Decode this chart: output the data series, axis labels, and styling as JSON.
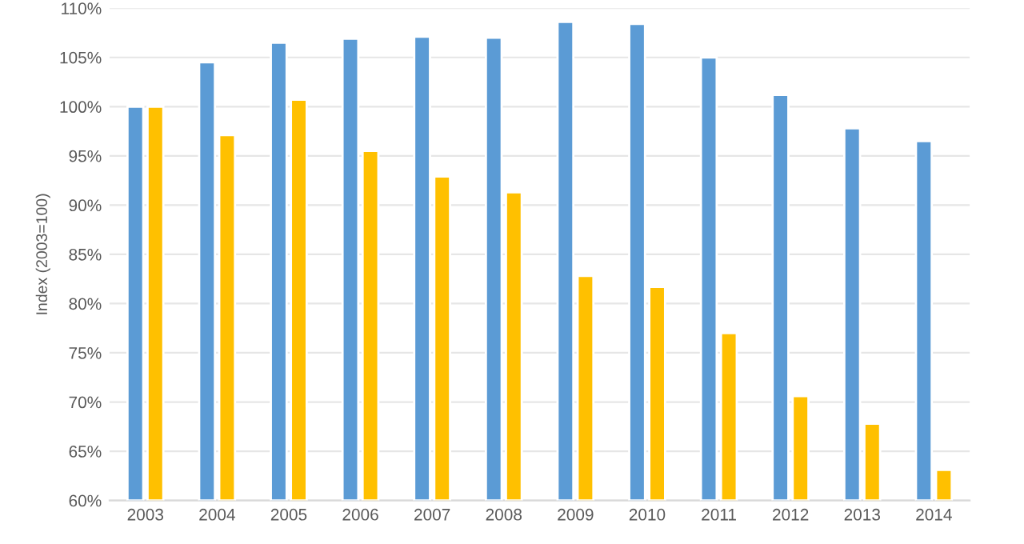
{
  "chart_data": {
    "type": "bar",
    "ylabel": "Index (2003=100)",
    "categories": [
      "2003",
      "2004",
      "2005",
      "2006",
      "2007",
      "2008",
      "2009",
      "2010",
      "2011",
      "2012",
      "2013",
      "2014"
    ],
    "series": [
      {
        "color": "#5b9bd5",
        "values": [
          100,
          104.5,
          106.5,
          106.9,
          107.1,
          107.0,
          108.6,
          108.4,
          105.0,
          101.2,
          97.8,
          96.5
        ]
      },
      {
        "color": "#ffc000",
        "values": [
          100,
          97.1,
          100.7,
          95.5,
          92.9,
          91.3,
          82.8,
          81.7,
          77.0,
          70.6,
          67.8,
          63.1
        ]
      }
    ],
    "ylim": [
      60,
      110
    ],
    "yticks": [
      {
        "value": 60,
        "label": "60%"
      },
      {
        "value": 65,
        "label": "65%"
      },
      {
        "value": 70,
        "label": "70%"
      },
      {
        "value": 75,
        "label": "75%"
      },
      {
        "value": 80,
        "label": "80%"
      },
      {
        "value": 85,
        "label": "85%"
      },
      {
        "value": 90,
        "label": "90%"
      },
      {
        "value": 95,
        "label": "95%"
      },
      {
        "value": 100,
        "label": "100%"
      },
      {
        "value": 105,
        "label": "105%"
      },
      {
        "value": 110,
        "label": "110%"
      }
    ],
    "grid": "y",
    "legend": false
  }
}
